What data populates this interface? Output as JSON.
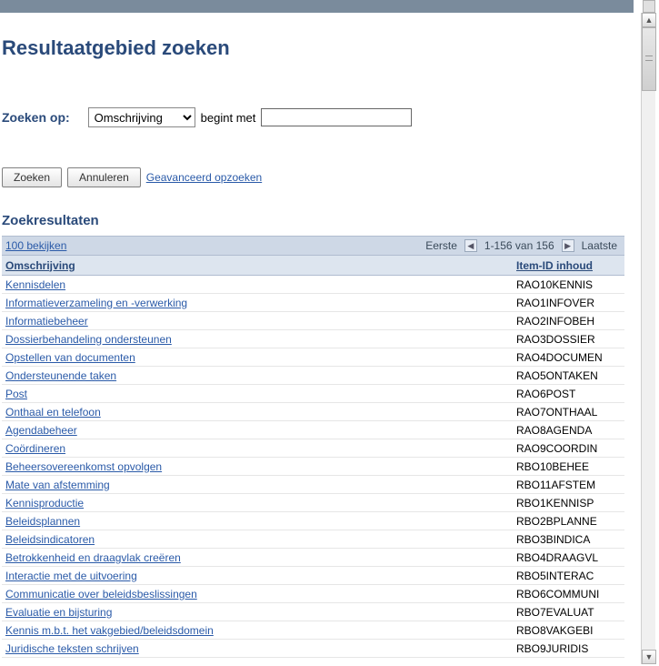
{
  "page_title": "Resultaatgebied zoeken",
  "search": {
    "label": "Zoeken op:",
    "field_options": [
      "Omschrijving"
    ],
    "field_selected": "Omschrijving",
    "operator_label": "begint met",
    "input_value": ""
  },
  "buttons": {
    "search": "Zoeken",
    "cancel": "Annuleren",
    "advanced": "Geavanceerd opzoeken"
  },
  "results": {
    "title": "Zoekresultaten",
    "toolbar": {
      "view100": "100 bekijken",
      "first": "Eerste",
      "range": "1-156 van 156",
      "last": "Laatste"
    },
    "columns": {
      "description": "Omschrijving",
      "item_id": "Item-ID inhoud"
    },
    "rows": [
      {
        "desc": "Kennisdelen",
        "id": "RAO10KENNIS"
      },
      {
        "desc": "Informatieverzameling en -verwerking",
        "id": "RAO1INFOVER"
      },
      {
        "desc": "Informatiebeheer",
        "id": "RAO2INFOBEH"
      },
      {
        "desc": "Dossierbehandeling ondersteunen",
        "id": "RAO3DOSSIER"
      },
      {
        "desc": "Opstellen van documenten",
        "id": "RAO4DOCUMEN"
      },
      {
        "desc": "Ondersteunende taken",
        "id": "RAO5ONTAKEN"
      },
      {
        "desc": "Post",
        "id": "RAO6POST"
      },
      {
        "desc": "Onthaal en telefoon",
        "id": "RAO7ONTHAAL"
      },
      {
        "desc": "Agendabeheer",
        "id": "RAO8AGENDA"
      },
      {
        "desc": "Coördineren",
        "id": "RAO9COORDIN"
      },
      {
        "desc": "Beheersovereenkomst opvolgen",
        "id": "RBO10BEHEE"
      },
      {
        "desc": "Mate van afstemming",
        "id": "RBO11AFSTEM"
      },
      {
        "desc": "Kennisproductie",
        "id": "RBO1KENNISP"
      },
      {
        "desc": "Beleidsplannen",
        "id": "RBO2BPLANNE"
      },
      {
        "desc": "Beleidsindicatoren",
        "id": "RBO3BINDICA"
      },
      {
        "desc": "Betrokkenheid en draagvlak creëren",
        "id": "RBO4DRAAGVL"
      },
      {
        "desc": "Interactie met de uitvoering",
        "id": "RBO5INTERAC"
      },
      {
        "desc": "Communicatie over beleidsbeslissingen",
        "id": "RBO6COMMUNI"
      },
      {
        "desc": "Evaluatie en bijsturing",
        "id": "RBO7EVALUAT"
      },
      {
        "desc": "Kennis m.b.t. het vakgebied/beleidsdomein",
        "id": "RBO8VAKGEBI"
      },
      {
        "desc": "Juridische teksten schrijven",
        "id": "RBO9JURIDIS"
      }
    ]
  },
  "colors": {
    "header_bar": "#7a8b9c",
    "title": "#2a4a7a",
    "link": "#2a5aa8",
    "toolbar_bg": "#ced8e6",
    "header_row_bg": "#dde5ef"
  }
}
